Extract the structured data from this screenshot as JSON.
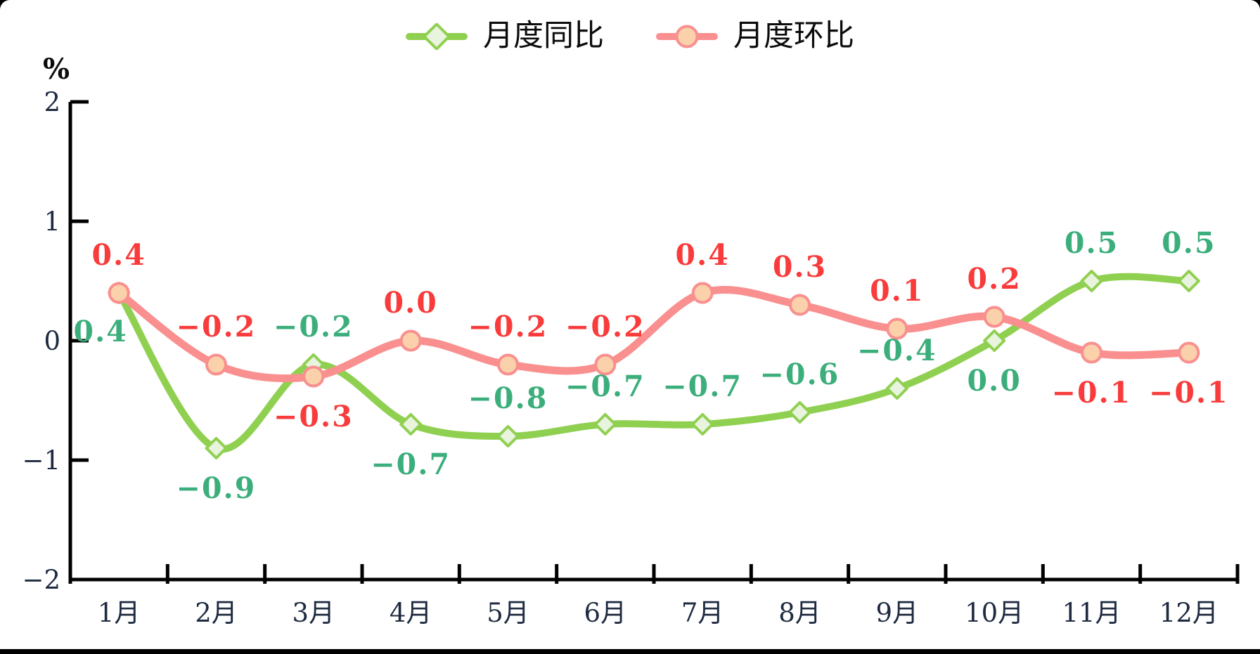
{
  "page": {
    "background": "#ffffff",
    "frame_color": "#000000"
  },
  "unit_label": "%",
  "legend": {
    "items": [
      {
        "label": "月度同比",
        "marker": "diamond",
        "line_color": "#90D051",
        "marker_fill": "#E9F4DF"
      },
      {
        "label": "月度环比",
        "marker": "circle",
        "line_color": "#F9908F",
        "marker_fill": "#FBD1AB"
      }
    ]
  },
  "chart_data": {
    "type": "line",
    "title": "",
    "xlabel": "",
    "ylabel": "%",
    "categories": [
      "1月",
      "2月",
      "3月",
      "4月",
      "5月",
      "6月",
      "7月",
      "8月",
      "9月",
      "10月",
      "11月",
      "12月"
    ],
    "yticks": [
      "2",
      "1",
      "0",
      "−1",
      "−2"
    ],
    "ytick_values": [
      2,
      1,
      0,
      -1,
      -2
    ],
    "ylim": [
      -2,
      2
    ],
    "grid": false,
    "legend_position": "top-center",
    "smooth": true,
    "series": [
      {
        "name": "月度同比",
        "marker": "diamond",
        "line_color": "#90D051",
        "marker_fill": "#E9F4DF",
        "label_color": "#3CAE7C",
        "values": [
          0.4,
          -0.9,
          -0.2,
          -0.7,
          -0.8,
          -0.7,
          -0.7,
          -0.6,
          -0.4,
          0.0,
          0.5,
          0.5
        ],
        "labels": [
          "0.4",
          "−0.9",
          "−0.2",
          "−0.7",
          "−0.8",
          "−0.7",
          "−0.7",
          "−0.6",
          "−0.4",
          "0.0",
          "0.5",
          "0.5"
        ],
        "label_pos": [
          "below-left",
          "below",
          "above",
          "below",
          "above",
          "above",
          "above",
          "above",
          "above",
          "below",
          "above",
          "above"
        ]
      },
      {
        "name": "月度环比",
        "marker": "circle",
        "line_color": "#F9908F",
        "marker_fill": "#FBD1AB",
        "label_color": "#F93B3B",
        "values": [
          0.4,
          -0.2,
          -0.3,
          0.0,
          -0.2,
          -0.2,
          0.4,
          0.3,
          0.1,
          0.2,
          -0.1,
          -0.1
        ],
        "labels": [
          "0.4",
          "−0.2",
          "−0.3",
          "0.0",
          "−0.2",
          "−0.2",
          "0.4",
          "0.3",
          "0.1",
          "0.2",
          "−0.1",
          "−0.1"
        ],
        "label_pos": [
          "above",
          "above",
          "below",
          "above",
          "above",
          "above",
          "above",
          "above",
          "above",
          "above",
          "below",
          "below"
        ]
      }
    ],
    "axis": {
      "line_color": "#000000",
      "tick_label_color": "#1E2A40"
    }
  }
}
